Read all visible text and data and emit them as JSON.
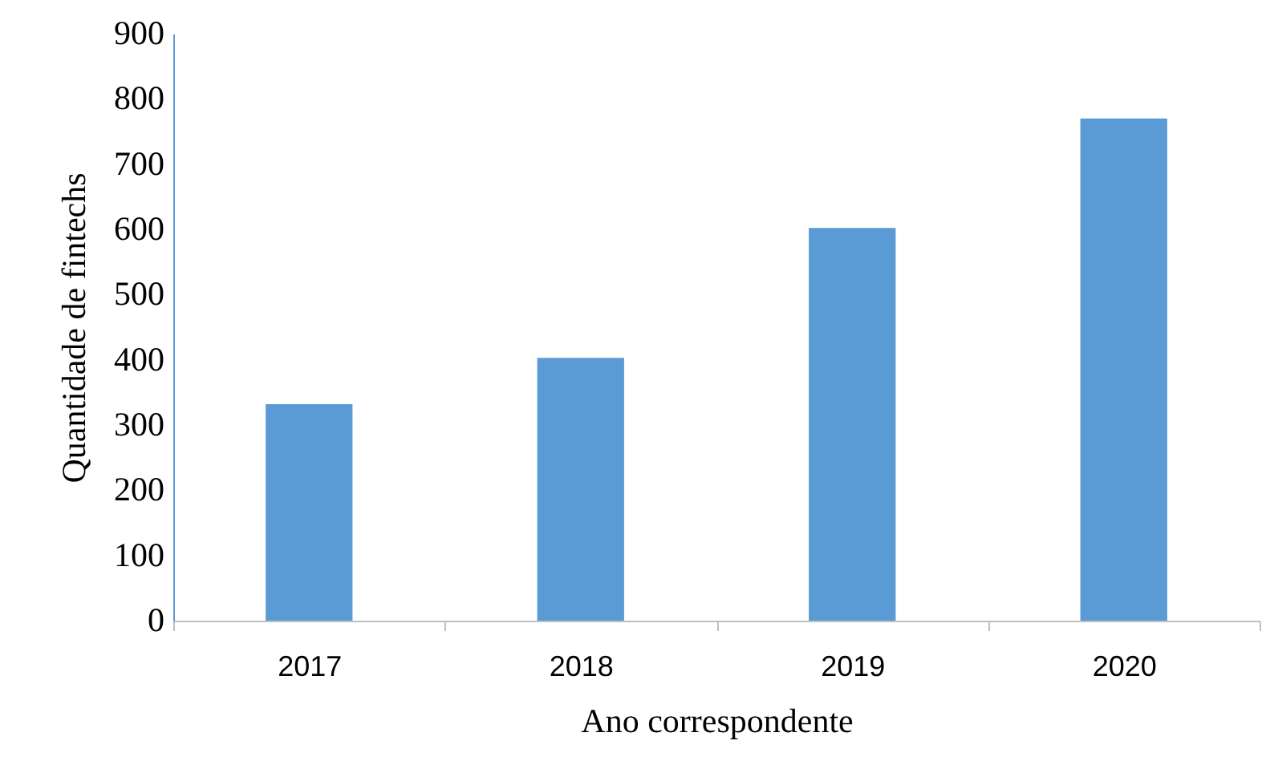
{
  "chart_data": {
    "type": "bar",
    "xlabel": "Ano correspondente",
    "ylabel": "Quantidade de fintechs",
    "categories": [
      "2017",
      "2018",
      "2019",
      "2020"
    ],
    "values": [
      332,
      403,
      602,
      770
    ],
    "color": "#5b9bd5",
    "ylim": [
      0,
      900
    ],
    "yticks": [
      0,
      100,
      200,
      300,
      400,
      500,
      600,
      700,
      800,
      900
    ],
    "grid": false
  }
}
